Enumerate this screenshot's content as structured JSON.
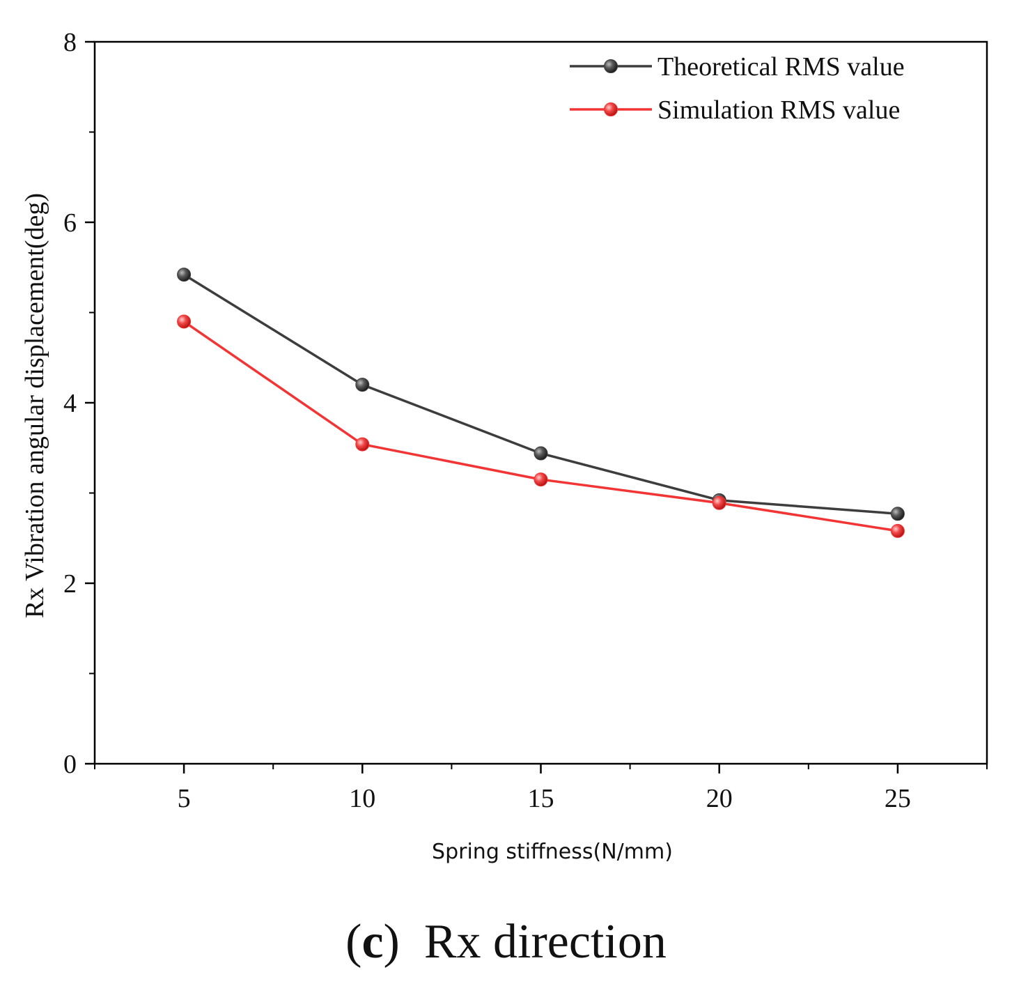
{
  "chart_data": {
    "type": "line",
    "title": "",
    "xlabel": "Spring stiffness(N/mm)",
    "ylabel": "Rx Vibration angular displacement(deg)",
    "x": [
      5,
      10,
      15,
      20,
      25
    ],
    "xlim": [
      2.5,
      27.5
    ],
    "ylim": [
      0,
      8
    ],
    "xticks": [
      5,
      10,
      15,
      20,
      25
    ],
    "yticks": [
      0,
      2,
      4,
      6,
      8
    ],
    "grid": false,
    "legend_position": "top-right",
    "series": [
      {
        "name": "Theoretical RMS value",
        "color": "#3d3d3d",
        "values": [
          5.42,
          4.2,
          3.44,
          2.92,
          2.77
        ]
      },
      {
        "name": "Simulation RMS value",
        "color": "#f23434",
        "values": [
          4.9,
          3.54,
          3.15,
          2.89,
          2.58
        ]
      }
    ]
  },
  "caption": {
    "open_paren": "(",
    "letter": "c",
    "close_paren": ")",
    "text": "Rx direction"
  }
}
